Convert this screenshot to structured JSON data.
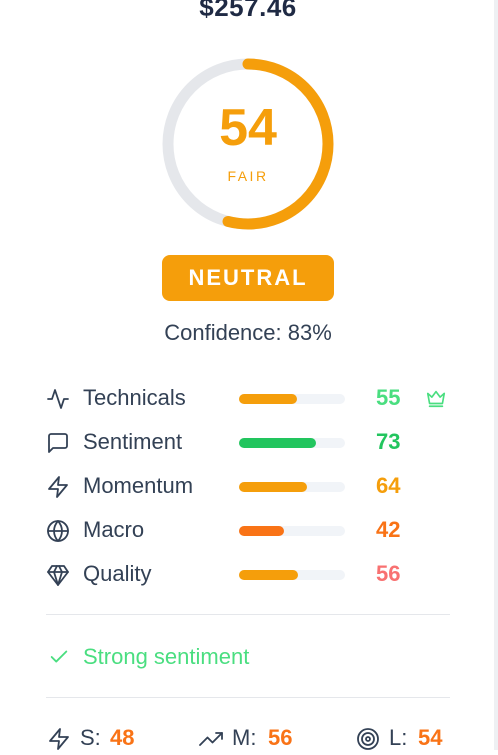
{
  "header": {
    "price": "$257.46"
  },
  "gauge": {
    "score": "54",
    "label": "FAIR",
    "fraction": 0.54,
    "progress_color": "#f59e0b",
    "track_color": "#e5e7eb"
  },
  "verdict": {
    "label": "NEUTRAL",
    "color": "#f59e0b"
  },
  "confidence": {
    "text": "Confidence: 83%"
  },
  "factors": [
    {
      "label": "Technicals",
      "icon": "activity-icon",
      "value": "55",
      "fraction": 0.55,
      "bar_color": "#f59e0b",
      "value_color": "#4ade80",
      "top": true
    },
    {
      "label": "Sentiment",
      "icon": "message-square-icon",
      "value": "73",
      "fraction": 0.73,
      "bar_color": "#22c55e",
      "value_color": "#22c55e",
      "top": false
    },
    {
      "label": "Momentum",
      "icon": "zap-icon",
      "value": "64",
      "fraction": 0.64,
      "bar_color": "#f59e0b",
      "value_color": "#f59e0b",
      "top": false
    },
    {
      "label": "Macro",
      "icon": "globe-icon",
      "value": "42",
      "fraction": 0.42,
      "bar_color": "#f97316",
      "value_color": "#f97316",
      "top": false
    },
    {
      "label": "Quality",
      "icon": "gem-icon",
      "value": "56",
      "fraction": 0.56,
      "bar_color": "#f59e0b",
      "value_color": "#f87171",
      "top": false
    }
  ],
  "signal": {
    "text": "Strong sentiment",
    "icon": "check-icon",
    "color": "#4ade80"
  },
  "horizons": [
    {
      "key": "S:",
      "value": "48",
      "icon": "zap-icon"
    },
    {
      "key": "M:",
      "value": "56",
      "icon": "trending-up-icon"
    },
    {
      "key": "L:",
      "value": "54",
      "icon": "target-icon"
    }
  ]
}
